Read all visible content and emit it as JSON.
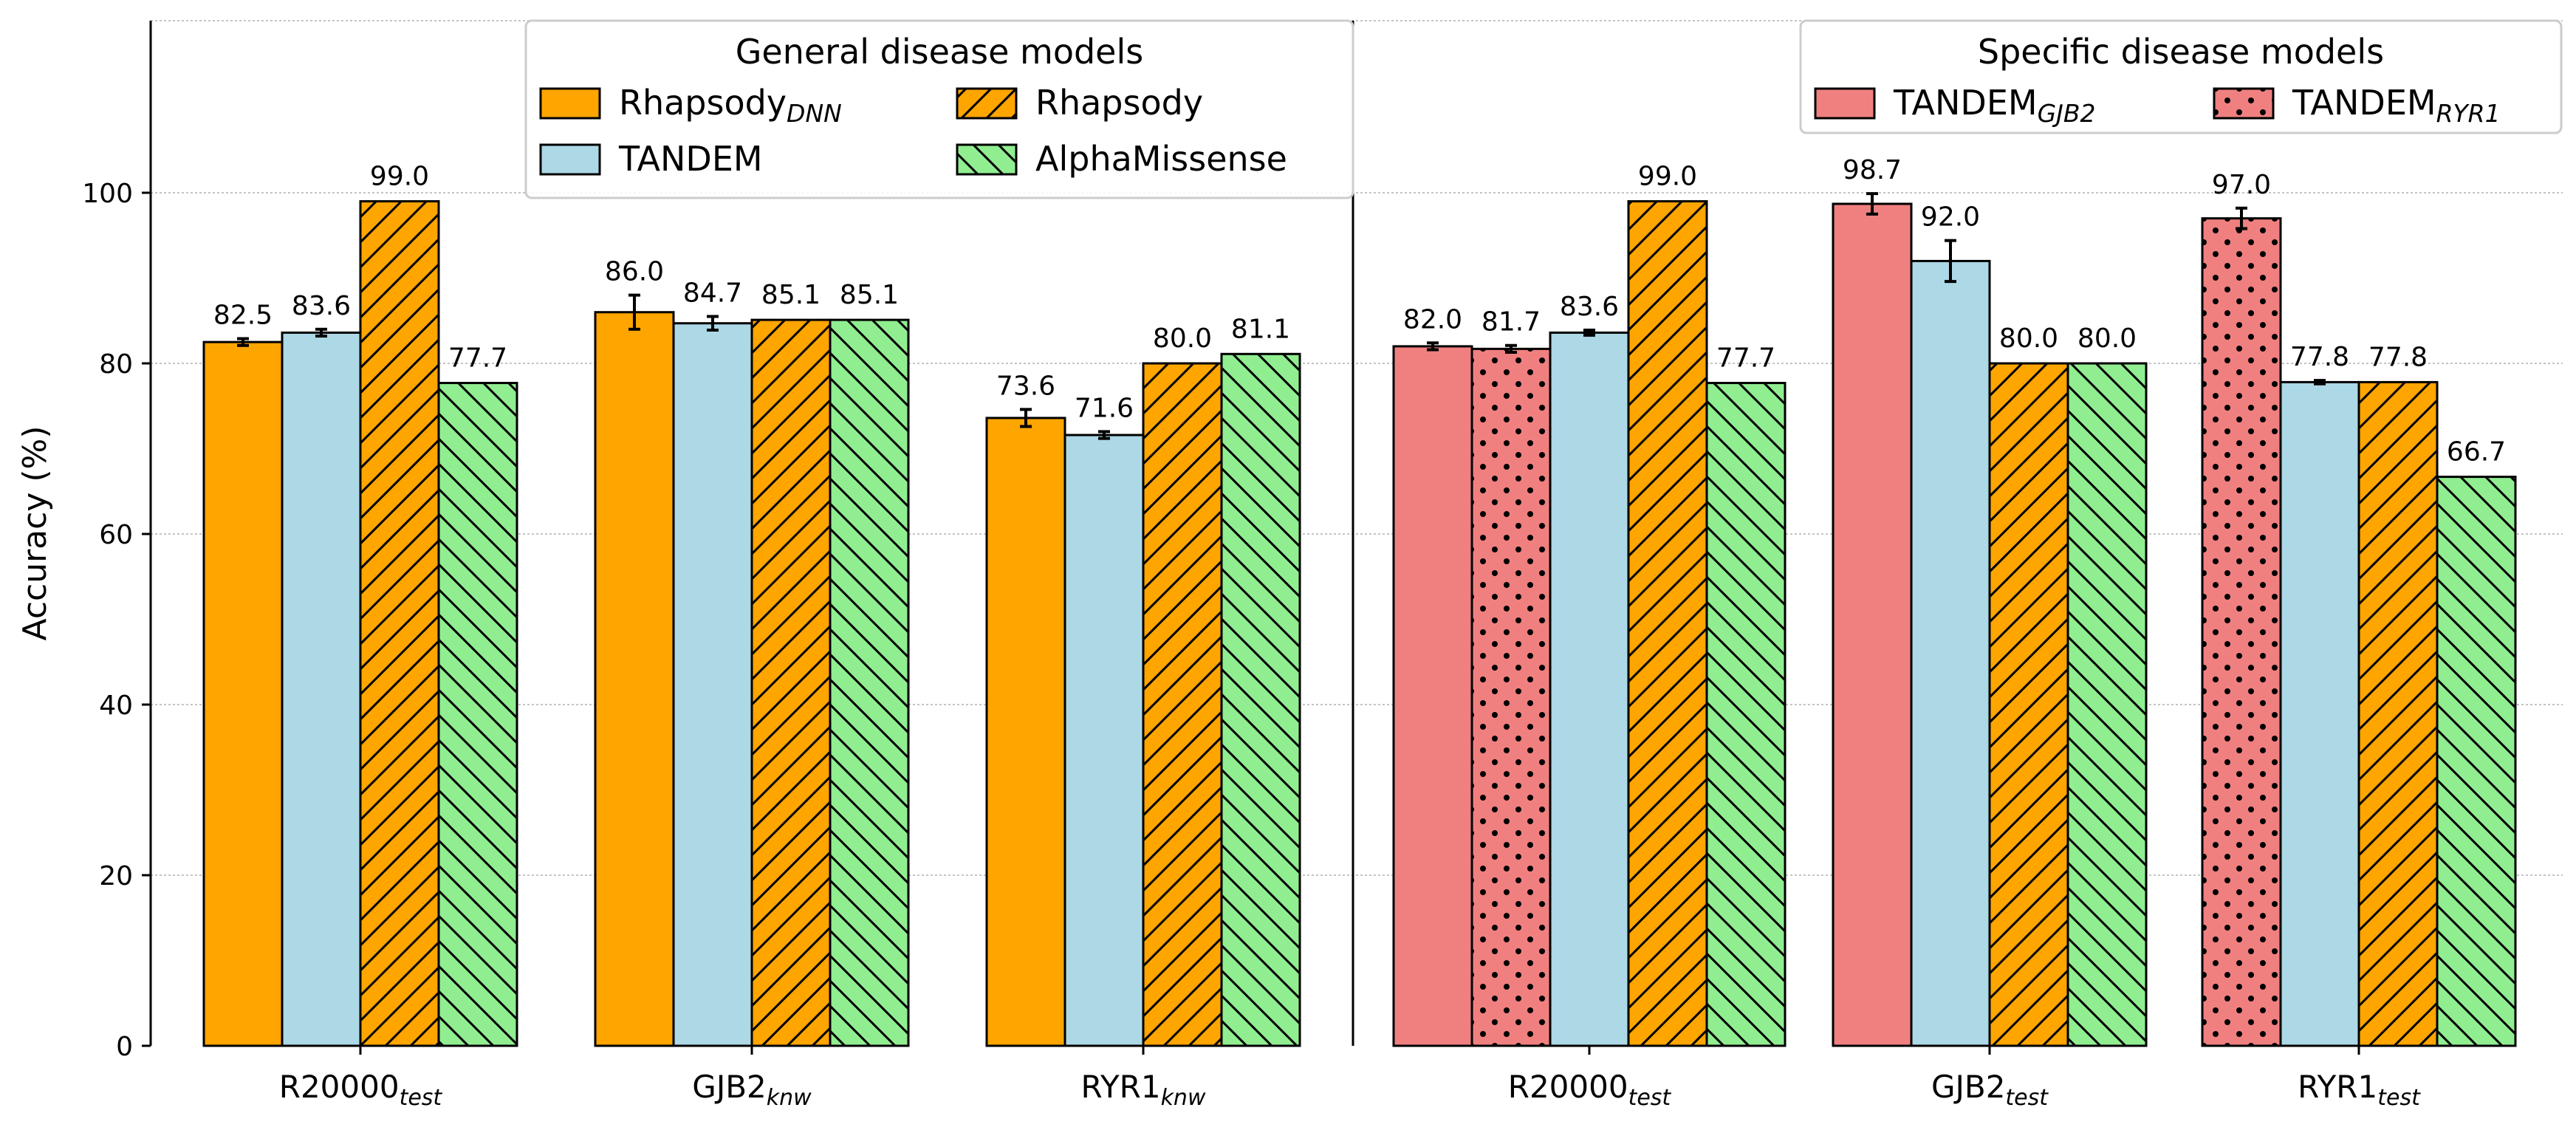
{
  "chart_data": {
    "type": "bar",
    "ylabel": "Accuracy (%)",
    "ylim": [
      0,
      120
    ],
    "yticks": [
      0,
      20,
      40,
      60,
      80,
      100
    ],
    "grid": true,
    "groups": [
      {
        "panel": "left",
        "label": "R20000",
        "label_sub": "test",
        "bars": [
          {
            "series": "Rhapsody_DNN",
            "value": 82.5,
            "err": 0.4,
            "label": "82.5"
          },
          {
            "series": "TANDEM",
            "value": 83.6,
            "err": 0.4,
            "label": "83.6"
          },
          {
            "series": "Rhapsody",
            "value": 99.0,
            "label": "99.0"
          },
          {
            "series": "AlphaMissense",
            "value": 77.7,
            "label": "77.7"
          }
        ]
      },
      {
        "panel": "left",
        "label": "GJB2",
        "label_sub": "knw",
        "bars": [
          {
            "series": "Rhapsody_DNN",
            "value": 86.0,
            "err": 2.0,
            "label": "86.0"
          },
          {
            "series": "TANDEM",
            "value": 84.7,
            "err": 0.8,
            "label": "84.7"
          },
          {
            "series": "Rhapsody",
            "value": 85.1,
            "label": "85.1"
          },
          {
            "series": "AlphaMissense",
            "value": 85.1,
            "label": "85.1"
          }
        ]
      },
      {
        "panel": "left",
        "label": "RYR1",
        "label_sub": "knw",
        "bars": [
          {
            "series": "Rhapsody_DNN",
            "value": 73.6,
            "err": 1.0,
            "label": "73.6"
          },
          {
            "series": "TANDEM",
            "value": 71.6,
            "err": 0.4,
            "label": "71.6"
          },
          {
            "series": "Rhapsody",
            "value": 80.0,
            "label": "80.0"
          },
          {
            "series": "AlphaMissense",
            "value": 81.1,
            "label": "81.1"
          }
        ]
      },
      {
        "panel": "right",
        "label": "R20000",
        "label_sub": "test",
        "bars": [
          {
            "series": "TANDEM_GJB2",
            "value": 82.0,
            "err": 0.4,
            "label": "82.0"
          },
          {
            "series": "TANDEM_RYR1",
            "value": 81.7,
            "err": 0.4,
            "label": "81.7"
          },
          {
            "series": "TANDEM",
            "value": 83.6,
            "err": 0.3,
            "label": "83.6"
          },
          {
            "series": "Rhapsody",
            "value": 99.0,
            "label": "99.0"
          },
          {
            "series": "AlphaMissense",
            "value": 77.7,
            "label": "77.7"
          }
        ]
      },
      {
        "panel": "right",
        "label": "GJB2",
        "label_sub": "test",
        "bars": [
          {
            "series": "TANDEM_GJB2",
            "value": 98.7,
            "err": 1.2,
            "label": "98.7"
          },
          {
            "series": "TANDEM",
            "value": 92.0,
            "err": 2.4,
            "label": "92.0"
          },
          {
            "series": "Rhapsody",
            "value": 80.0,
            "label": "80.0"
          },
          {
            "series": "AlphaMissense",
            "value": 80.0,
            "label": "80.0"
          }
        ]
      },
      {
        "panel": "right",
        "label": "RYR1",
        "label_sub": "test",
        "bars": [
          {
            "series": "TANDEM_RYR1",
            "value": 97.0,
            "err": 1.2,
            "label": "97.0"
          },
          {
            "series": "TANDEM",
            "value": 77.8,
            "err": 0.2,
            "label": "77.8"
          },
          {
            "series": "Rhapsody",
            "value": 77.8,
            "label": "77.8"
          },
          {
            "series": "AlphaMissense",
            "value": 66.7,
            "label": "66.7"
          }
        ]
      }
    ],
    "series_styles": {
      "Rhapsody_DNN": {
        "color": "#ffa500",
        "hatch": "none"
      },
      "TANDEM": {
        "color": "#add8e6",
        "hatch": "none"
      },
      "Rhapsody": {
        "color": "#ffa500",
        "hatch": "slash"
      },
      "AlphaMissense": {
        "color": "#90ee90",
        "hatch": "backslash"
      },
      "TANDEM_GJB2": {
        "color": "#f08080",
        "hatch": "none"
      },
      "TANDEM_RYR1": {
        "color": "#f08080",
        "hatch": "dots"
      }
    },
    "legends": [
      {
        "title": "General disease models",
        "placement": "top-center-left",
        "entries": [
          {
            "series": "Rhapsody_DNN",
            "text": "Rhapsody",
            "sub": "DNN"
          },
          {
            "series": "Rhapsody",
            "text": "Rhapsody",
            "sub": ""
          },
          {
            "series": "TANDEM",
            "text": "TANDEM",
            "sub": ""
          },
          {
            "series": "AlphaMissense",
            "text": "AlphaMissense",
            "sub": ""
          }
        ]
      },
      {
        "title": "Specific disease models",
        "placement": "top-right",
        "entries": [
          {
            "series": "TANDEM_GJB2",
            "text": "TANDEM",
            "sub": "GJB2"
          },
          {
            "series": "TANDEM_RYR1",
            "text": "TANDEM",
            "sub": "RYR1"
          }
        ]
      }
    ]
  }
}
